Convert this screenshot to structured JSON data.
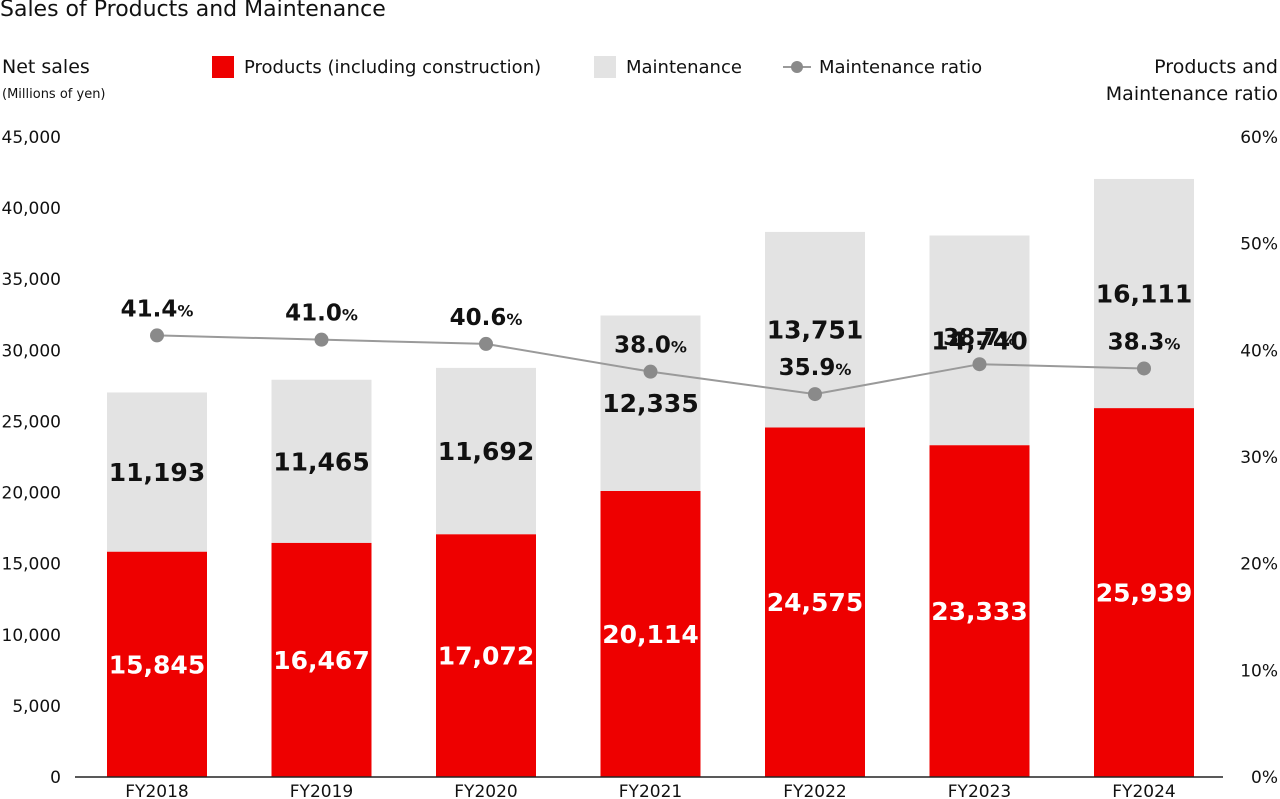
{
  "title": "Sales of Products and Maintenance",
  "left_axis": {
    "label": "Net sales",
    "unit": "(Millions of yen)"
  },
  "right_axis": {
    "label_line1": "Products and",
    "label_line2": "Maintenance ratio"
  },
  "legend": {
    "products": "Products (including construction)",
    "maintenance": "Maintenance",
    "ratio": "Maintenance ratio"
  },
  "colors": {
    "products": "#ee0000",
    "maintenance": "#e3e3e3",
    "ratio_line": "#9a9a9a",
    "ratio_marker": "#8a8a8a"
  },
  "chart_data": {
    "type": "bar",
    "stacked": true,
    "title": "Sales of Products and Maintenance",
    "categories": [
      "FY2018",
      "FY2019",
      "FY2020",
      "FY2021",
      "FY2022",
      "FY2023",
      "FY2024"
    ],
    "series": [
      {
        "name": "Products (including construction)",
        "values": [
          15845,
          16467,
          17072,
          20114,
          24575,
          23333,
          25939
        ],
        "labels": [
          "15,845",
          "16,467",
          "17,072",
          "20,114",
          "24,575",
          "23,333",
          "25,939"
        ]
      },
      {
        "name": "Maintenance",
        "values": [
          11193,
          11465,
          11692,
          12335,
          13751,
          14740,
          16111
        ],
        "labels": [
          "11,193",
          "11,465",
          "11,692",
          "12,335",
          "13,751",
          "14,740",
          "16,111"
        ]
      }
    ],
    "line_series": {
      "name": "Maintenance ratio",
      "values": [
        41.4,
        41.0,
        40.6,
        38.0,
        35.9,
        38.7,
        38.3
      ],
      "labels": [
        "41.4",
        "41.0",
        "40.6",
        "38.0",
        "35.9",
        "38.7",
        "38.3"
      ],
      "suffix": "%"
    },
    "ylim": [
      0,
      45000
    ],
    "yticks": [
      "0",
      "5,000",
      "10,000",
      "15,000",
      "20,000",
      "25,000",
      "30,000",
      "35,000",
      "40,000",
      "45,000"
    ],
    "y2lim": [
      0,
      60
    ],
    "y2ticks": [
      "0%",
      "10%",
      "20%",
      "30%",
      "40%",
      "50%",
      "60%"
    ],
    "grid": false,
    "legend_position": "top"
  }
}
